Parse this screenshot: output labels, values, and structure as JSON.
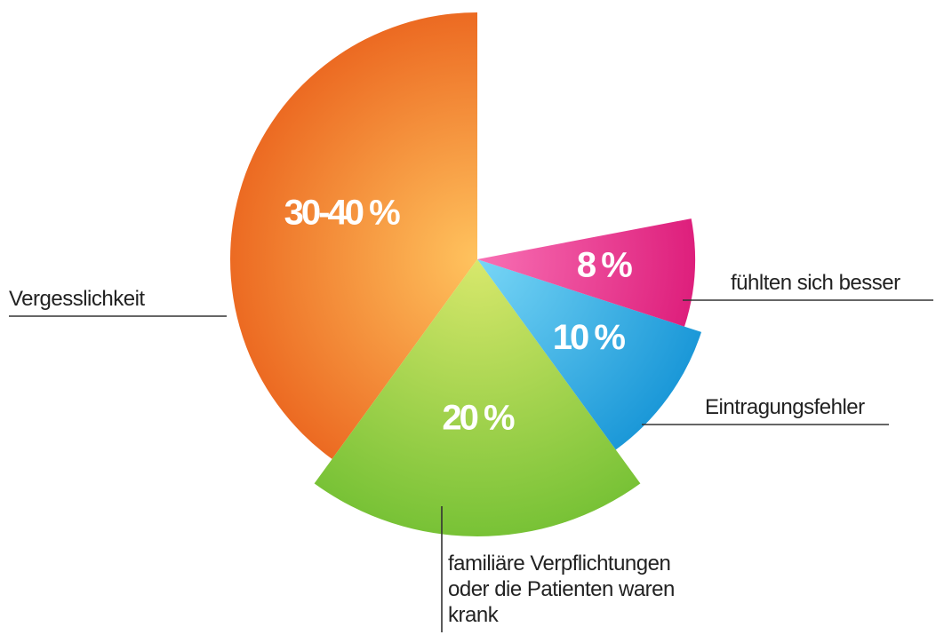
{
  "chart_data": {
    "type": "pie",
    "categories": [
      "Vergesslichkeit",
      "familiäre Verpflichtungen oder die Patienten waren krank",
      "Eintragungsfehler",
      "fühlten sich besser"
    ],
    "values": [
      40,
      20,
      10,
      8
    ],
    "value_labels": [
      "30-40 %",
      "20 %",
      "10 %",
      "8 %"
    ],
    "colors": [
      [
        "#ffc35e",
        "#ec6a22"
      ],
      [
        "#d8e86c",
        "#78c236"
      ],
      [
        "#78d6f6",
        "#1b98d8"
      ],
      [
        "#f870b4",
        "#de1f7c"
      ]
    ]
  }
}
